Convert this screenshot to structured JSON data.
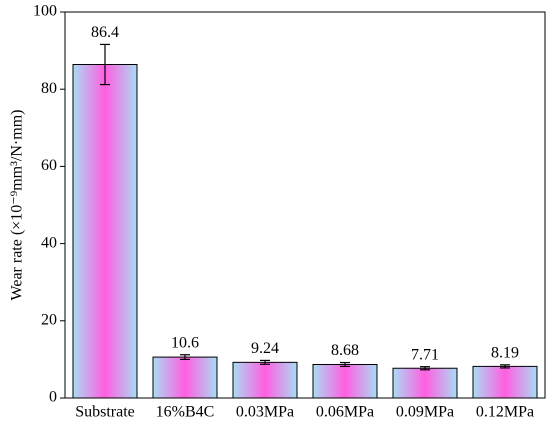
{
  "chart_data": {
    "type": "bar",
    "ylabel": "Wear rate (×10⁻⁹mm³/N·mm)",
    "categories": [
      "Substrate",
      "16%B4C",
      "0.03MPa",
      "0.06MPa",
      "0.09MPa",
      "0.12MPa"
    ],
    "values": [
      86.4,
      10.6,
      9.24,
      8.68,
      7.71,
      8.19
    ],
    "errors": [
      5.2,
      0.6,
      0.5,
      0.5,
      0.4,
      0.4
    ],
    "colors": [
      "#a9dcf4",
      "#ff5fe0"
    ],
    "ylim": [
      0,
      100
    ],
    "yticks": [
      0,
      20,
      40,
      60,
      80,
      100
    ],
    "grid": false
  }
}
